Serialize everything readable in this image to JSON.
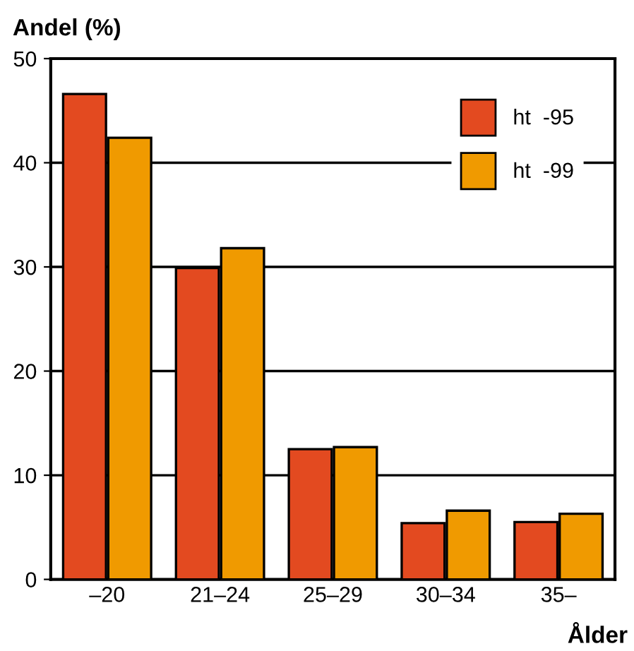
{
  "chart_data": {
    "type": "bar",
    "ylabel": "Andel (%)",
    "xlabel": "Ålder",
    "categories": [
      "–20",
      "21–24",
      "25–29",
      "30–34",
      "35–"
    ],
    "series": [
      {
        "name": "ht  -95",
        "color": "#e34a20",
        "values": [
          46.6,
          29.9,
          12.5,
          5.4,
          5.5
        ]
      },
      {
        "name": "ht  -99",
        "color": "#f09a00",
        "values": [
          42.4,
          31.8,
          12.7,
          6.6,
          6.3
        ]
      }
    ],
    "ylim": [
      0,
      50
    ],
    "yticks": [
      0,
      10,
      20,
      30,
      40,
      50
    ],
    "grid": "y",
    "legend": "top right"
  }
}
